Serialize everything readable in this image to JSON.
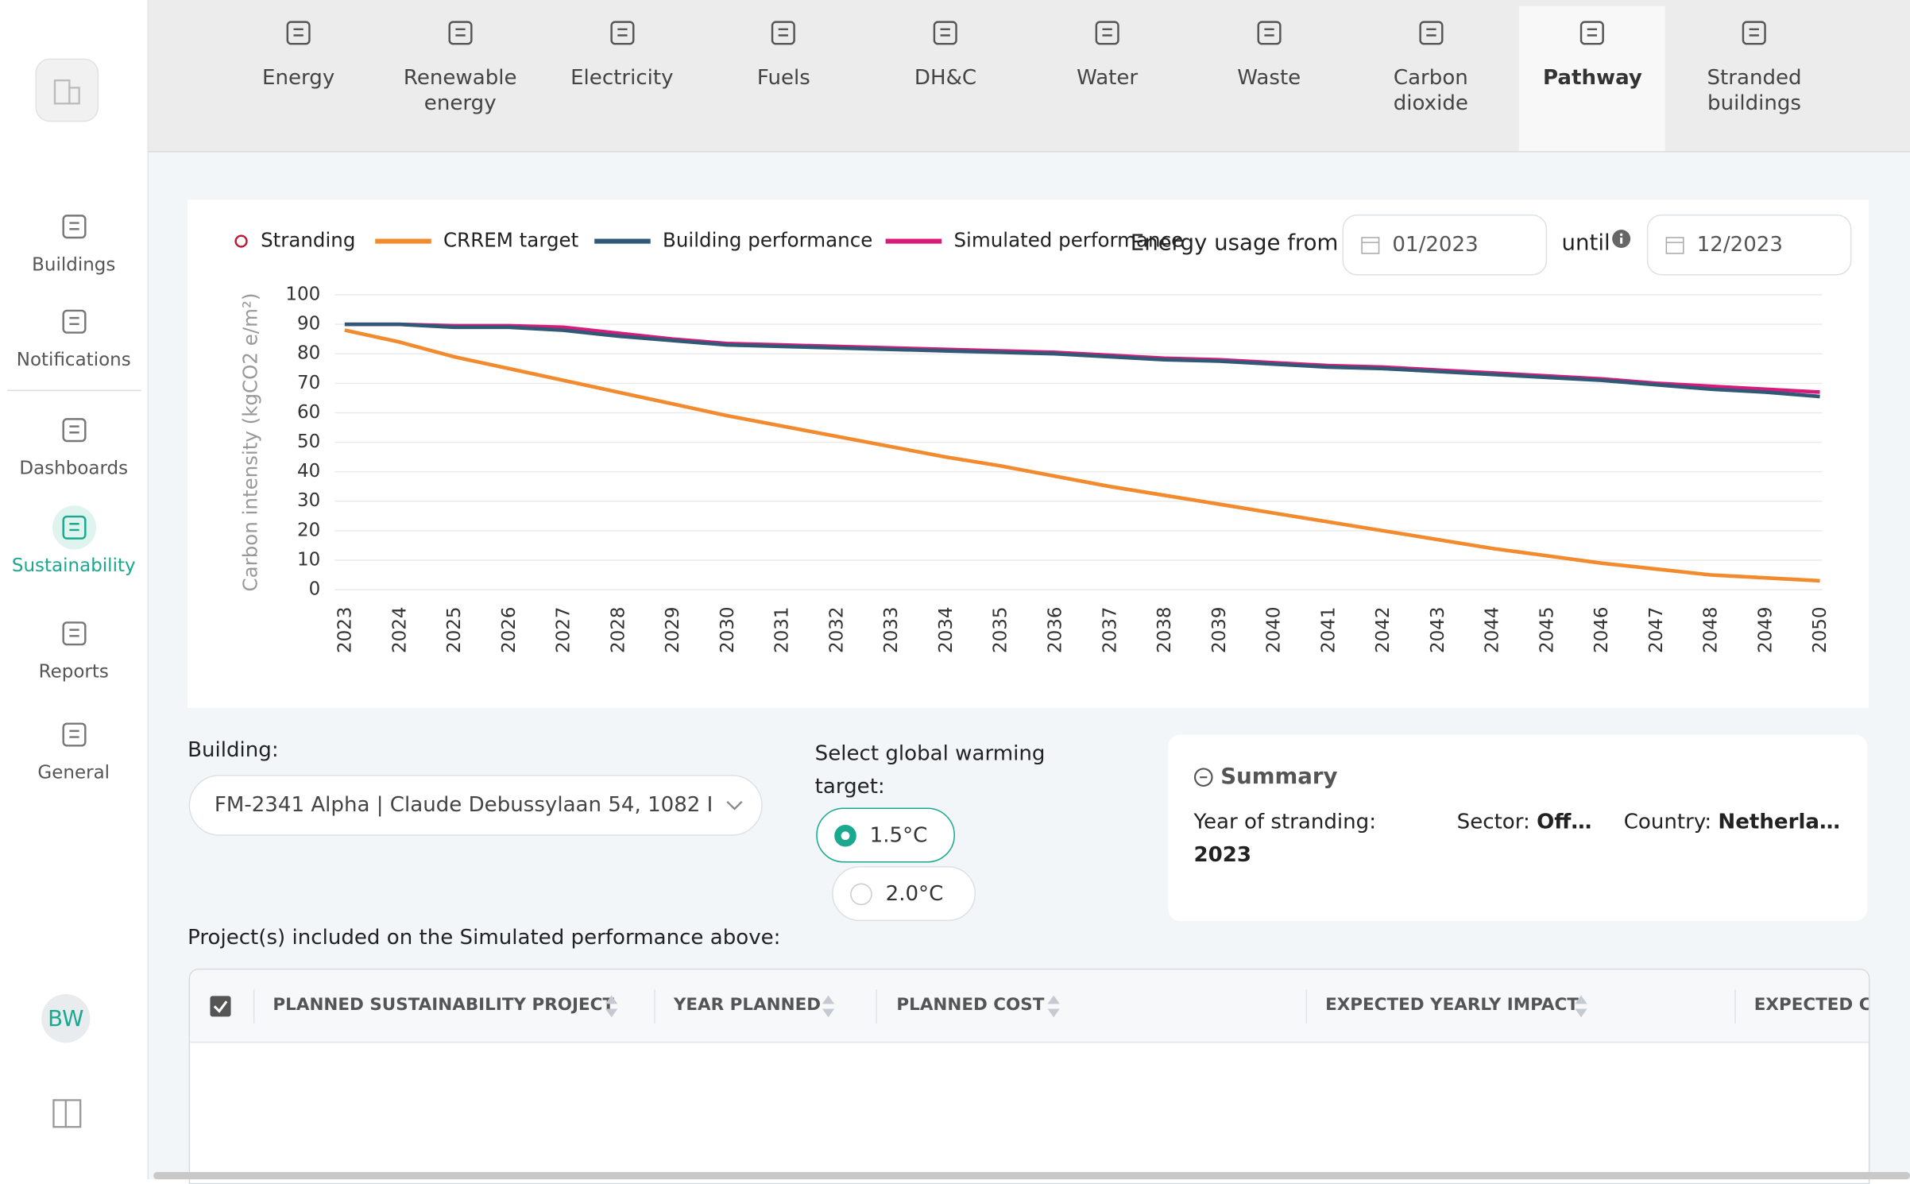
{
  "sidebar": {
    "nav": [
      "Buildings",
      "Notifications",
      "Dashboards",
      "Sustainability",
      "Reports",
      "General"
    ],
    "active": 3,
    "avatar": "BW"
  },
  "tabs": {
    "items": [
      "Energy",
      "Renewable energy",
      "Electricity",
      "Fuels",
      "DH&C",
      "Water",
      "Waste",
      "Carbon dioxide",
      "Pathway",
      "Stranded buildings"
    ],
    "active": 8
  },
  "chart_data": {
    "type": "line",
    "ylabel": "Carbon intensity (kgCO2 e/m²)",
    "x": [
      2023,
      2024,
      2025,
      2026,
      2027,
      2028,
      2029,
      2030,
      2031,
      2032,
      2033,
      2034,
      2035,
      2036,
      2037,
      2038,
      2039,
      2040,
      2041,
      2042,
      2043,
      2044,
      2045,
      2046,
      2047,
      2048,
      2049,
      2050
    ],
    "xlim": [
      2023,
      2050
    ],
    "ylim": [
      0,
      100
    ],
    "yticks": [
      0,
      10,
      20,
      30,
      40,
      50,
      60,
      70,
      80,
      90,
      100
    ],
    "grid": true,
    "legend": "top-left",
    "series": [
      {
        "name": "Stranding",
        "color": "#c0182c",
        "marker": "circle",
        "values": [
          null,
          null,
          null,
          null,
          null,
          null,
          null,
          null,
          null,
          null,
          null,
          null,
          null,
          null,
          null,
          null,
          null,
          null,
          null,
          null,
          null,
          null,
          null,
          null,
          null,
          null,
          null,
          null
        ]
      },
      {
        "name": "CRREM target",
        "color": "#f28a2e",
        "values": [
          88,
          84,
          79,
          75,
          71,
          67,
          63,
          59,
          55.5,
          52,
          48.5,
          45,
          42,
          38.5,
          35,
          32,
          29,
          26,
          23,
          20,
          17,
          14,
          11.5,
          9,
          7,
          5,
          4,
          3
        ]
      },
      {
        "name": "Building performance",
        "color": "#2f5977",
        "values": [
          90,
          90,
          89,
          89,
          88,
          86,
          84.5,
          83,
          82.5,
          82,
          81.5,
          81,
          80.5,
          80,
          79,
          78,
          77.5,
          76.5,
          75.5,
          75,
          74,
          73,
          72,
          71,
          69.5,
          68,
          67,
          65.5
        ]
      },
      {
        "name": "Simulated performance",
        "color": "#d81b7a",
        "values": [
          90,
          90,
          89.5,
          89.5,
          89,
          87,
          85,
          83.5,
          83,
          82.5,
          82,
          81.5,
          81,
          80.5,
          79.5,
          78.5,
          78,
          77,
          76,
          75.5,
          74.5,
          73.5,
          72.5,
          71.5,
          70,
          69,
          68,
          67
        ]
      }
    ]
  },
  "filters": {
    "label": "Energy usage from",
    "from": "01/2023",
    "until": "until",
    "to": "12/2023"
  },
  "building": {
    "label": "Building:",
    "value": "FM-2341 Alpha | Claude Debussylaan 54, 1082 I"
  },
  "target": {
    "label": "Select global warming target:",
    "options": [
      "1.5°C",
      "2.0°C"
    ],
    "selected": 0
  },
  "summary": {
    "title": "Summary",
    "year_label": "Year of stranding:",
    "year": "2023",
    "sector_label": "Sector:",
    "sector": "Off…",
    "country_label": "Country:",
    "country": "Netherla…"
  },
  "projects_label": "Project(s) included on the Simulated performance above:",
  "table": {
    "columns": [
      "PLANNED SUSTAINABILITY PROJECT",
      "YEAR PLANNED",
      "PLANNED COST",
      "EXPECTED YEARLY IMPACT",
      "EXPECTED C"
    ]
  }
}
